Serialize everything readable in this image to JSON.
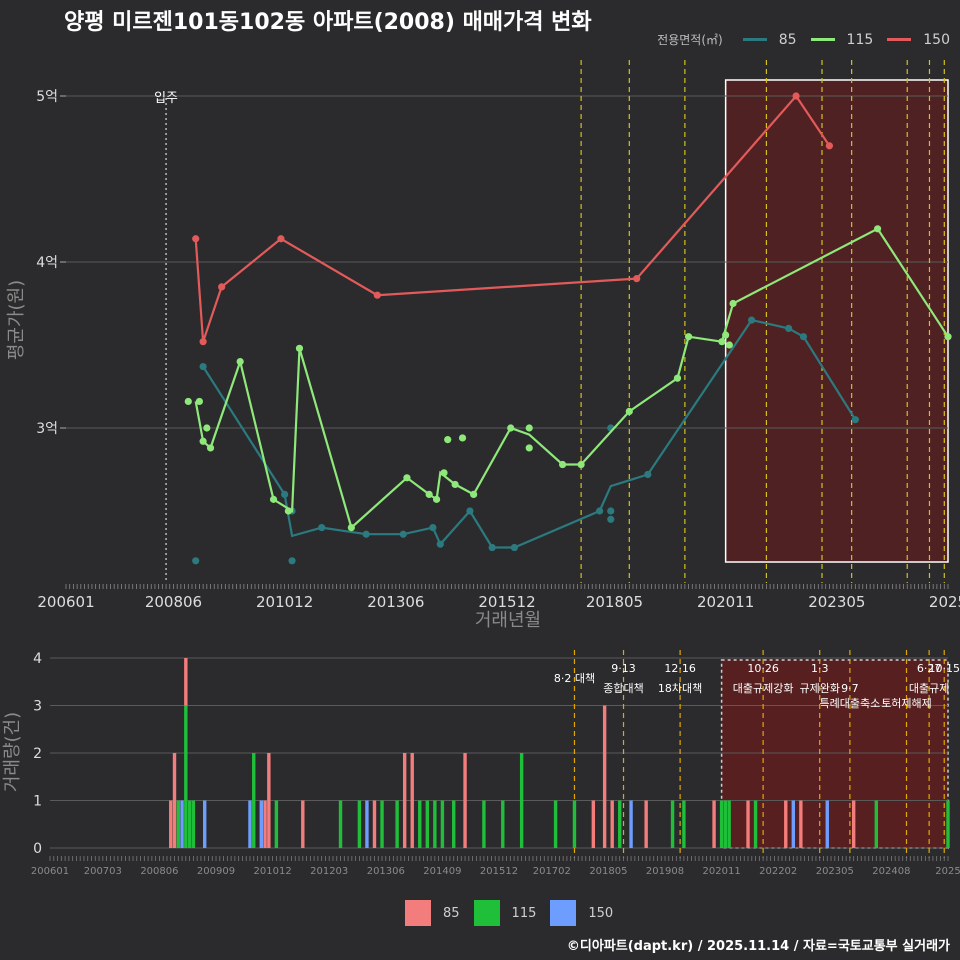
{
  "title": "양평 미르젠101동102동 아파트(2008) 매매가격 변화",
  "legend": {
    "title": "전용면적(㎡)",
    "items": [
      {
        "label": "85",
        "line_color": "#2b7a7f",
        "bar_color": "#f37c7c"
      },
      {
        "label": "115",
        "line_color": "#8ee87a",
        "bar_color": "#1fbf3a"
      },
      {
        "label": "150",
        "line_color": "#e35a5a",
        "bar_color": "#6d9eff"
      }
    ]
  },
  "credit": "©디아파트(dapt.kr) / 2025.11.14 / 자료=국토교통부 실거래가",
  "chart_data": [
    {
      "type": "line",
      "xlabel": "거래년월",
      "ylabel": "평균가(원)",
      "x_range": [
        "2006-01",
        "2025-11"
      ],
      "ylim": [
        2.05,
        5.2
      ],
      "y_ticks": [
        3,
        4,
        5
      ],
      "y_tick_labels": [
        "3억",
        "4억",
        "5억"
      ],
      "x_ticks": [
        "2006-01",
        "2008-06",
        "2010-12",
        "2013-06",
        "2015-12",
        "2018-05",
        "2020-11",
        "2023-05",
        "2025-11"
      ],
      "x_tick_labels": [
        "200601",
        "200806",
        "201012",
        "201306",
        "201512",
        "201805",
        "202011",
        "202305",
        "2025"
      ],
      "move_in": {
        "x": "2008-04",
        "label": "입주"
      },
      "highlight_range": [
        "2020-11",
        "2025-11"
      ],
      "policy_lines": [
        "2017-08",
        "2018-09",
        "2019-12",
        "2021-10",
        "2023-01",
        "2023-09",
        "2024-12",
        "2025-06",
        "2025-10"
      ],
      "series": [
        {
          "name": "85",
          "line": [
            [
              "2009-02",
              3.37
            ],
            [
              "2010-12",
              2.6
            ],
            [
              "2011-02",
              2.35
            ],
            [
              "2011-10",
              2.4
            ],
            [
              "2012-10",
              2.36
            ],
            [
              "2013-08",
              2.36
            ],
            [
              "2014-04",
              2.4
            ],
            [
              "2014-06",
              2.3
            ],
            [
              "2015-02",
              2.5
            ],
            [
              "2015-08",
              2.28
            ],
            [
              "2016-02",
              2.28
            ],
            [
              "2018-01",
              2.5
            ],
            [
              "2018-04",
              2.65
            ],
            [
              "2019-02",
              2.72
            ],
            [
              "2021-06",
              3.65
            ],
            [
              "2022-04",
              3.6
            ],
            [
              "2022-08",
              3.55
            ],
            [
              "2023-10",
              3.05
            ]
          ],
          "points": [
            [
              "2008-12",
              2.2
            ],
            [
              "2009-02",
              3.37
            ],
            [
              "2010-12",
              2.6
            ],
            [
              "2011-02",
              2.5
            ],
            [
              "2011-02",
              2.2
            ],
            [
              "2011-10",
              2.4
            ],
            [
              "2012-10",
              2.36
            ],
            [
              "2013-08",
              2.36
            ],
            [
              "2014-04",
              2.4
            ],
            [
              "2014-06",
              2.3
            ],
            [
              "2015-02",
              2.5
            ],
            [
              "2015-08",
              2.28
            ],
            [
              "2016-02",
              2.28
            ],
            [
              "2018-01",
              2.5
            ],
            [
              "2018-04",
              2.45
            ],
            [
              "2018-04",
              2.5
            ],
            [
              "2018-04",
              3.0
            ],
            [
              "2019-02",
              2.72
            ],
            [
              "2021-06",
              3.65
            ],
            [
              "2022-04",
              3.6
            ],
            [
              "2022-08",
              3.55
            ],
            [
              "2023-10",
              3.05
            ]
          ]
        },
        {
          "name": "115",
          "line": [
            [
              "2008-12",
              3.16
            ],
            [
              "2009-02",
              2.92
            ],
            [
              "2009-04",
              2.88
            ],
            [
              "2009-12",
              3.4
            ],
            [
              "2010-09",
              2.57
            ],
            [
              "2011-02",
              2.5
            ],
            [
              "2011-04",
              3.48
            ],
            [
              "2012-06",
              2.4
            ],
            [
              "2013-09",
              2.7
            ],
            [
              "2014-03",
              2.6
            ],
            [
              "2014-05",
              2.57
            ],
            [
              "2014-06",
              2.73
            ],
            [
              "2014-10",
              2.66
            ],
            [
              "2015-03",
              2.6
            ],
            [
              "2016-01",
              3.0
            ],
            [
              "2016-06",
              2.96
            ],
            [
              "2017-03",
              2.78
            ],
            [
              "2017-08",
              2.78
            ],
            [
              "2018-09",
              3.1
            ],
            [
              "2019-10",
              3.3
            ],
            [
              "2020-01",
              3.55
            ],
            [
              "2020-10",
              3.52
            ],
            [
              "2021-01",
              3.75
            ],
            [
              "2024-04",
              4.2
            ],
            [
              "2025-11",
              3.55
            ]
          ],
          "points": [
            [
              "2008-10",
              3.16
            ],
            [
              "2009-01",
              3.16
            ],
            [
              "2009-02",
              2.92
            ],
            [
              "2009-03",
              3.0
            ],
            [
              "2009-04",
              2.88
            ],
            [
              "2009-12",
              3.4
            ],
            [
              "2010-09",
              2.57
            ],
            [
              "2011-01",
              2.5
            ],
            [
              "2011-04",
              3.48
            ],
            [
              "2012-06",
              2.4
            ],
            [
              "2013-09",
              2.7
            ],
            [
              "2014-03",
              2.6
            ],
            [
              "2014-05",
              2.57
            ],
            [
              "2014-07",
              2.73
            ],
            [
              "2014-08",
              2.93
            ],
            [
              "2014-10",
              2.66
            ],
            [
              "2014-12",
              2.94
            ],
            [
              "2015-03",
              2.6
            ],
            [
              "2016-01",
              3.0
            ],
            [
              "2016-06",
              2.88
            ],
            [
              "2016-06",
              3.0
            ],
            [
              "2017-03",
              2.78
            ],
            [
              "2017-08",
              2.78
            ],
            [
              "2018-09",
              3.1
            ],
            [
              "2019-10",
              3.3
            ],
            [
              "2020-01",
              3.55
            ],
            [
              "2020-10",
              3.52
            ],
            [
              "2020-11",
              3.56
            ],
            [
              "2020-12",
              3.5
            ],
            [
              "2021-01",
              3.75
            ],
            [
              "2024-04",
              4.2
            ],
            [
              "2025-11",
              3.55
            ]
          ]
        },
        {
          "name": "150",
          "line": [
            [
              "2008-12",
              4.14
            ],
            [
              "2009-02",
              3.52
            ],
            [
              "2009-07",
              3.85
            ],
            [
              "2010-11",
              4.14
            ],
            [
              "2013-01",
              3.8
            ],
            [
              "2018-11",
              3.9
            ],
            [
              "2022-06",
              5.0
            ],
            [
              "2023-03",
              4.7
            ]
          ],
          "points": [
            [
              "2008-12",
              4.14
            ],
            [
              "2009-02",
              3.52
            ],
            [
              "2009-07",
              3.85
            ],
            [
              "2010-11",
              4.14
            ],
            [
              "2013-01",
              3.8
            ],
            [
              "2018-11",
              3.9
            ],
            [
              "2022-06",
              5.0
            ],
            [
              "2023-03",
              4.7
            ]
          ]
        }
      ]
    },
    {
      "type": "bar",
      "ylabel": "거래량(건)",
      "x_range": [
        "2006-01",
        "2025-11"
      ],
      "ylim": [
        0,
        4.2
      ],
      "y_ticks": [
        0,
        1,
        2,
        3,
        4
      ],
      "x_ticks": [
        "2006-01",
        "2007-03",
        "2008-06",
        "2009-09",
        "2010-12",
        "2012-03",
        "2013-06",
        "2014-09",
        "2015-12",
        "2017-02",
        "2018-05",
        "2019-08",
        "2020-11",
        "2022-02",
        "2023-05",
        "2024-08",
        "2025-11"
      ],
      "x_tick_labels": [
        "200601",
        "200703",
        "200806",
        "200909",
        "201012",
        "201203",
        "201306",
        "201409",
        "201512",
        "201702",
        "201805",
        "201908",
        "202011",
        "202202",
        "202305",
        "202408",
        "2025"
      ],
      "highlight_range": [
        "2020-11",
        "2025-11"
      ],
      "annotations": [
        {
          "x": "2017-08",
          "label": "8·2 대책",
          "row": 1
        },
        {
          "x": "2018-09",
          "label": "9·13",
          "row": 0
        },
        {
          "x": "2018-09",
          "label": "종합대책",
          "row": 2
        },
        {
          "x": "2019-12",
          "label": "12·16",
          "row": 0
        },
        {
          "x": "2019-12",
          "label": "18차대책",
          "row": 2
        },
        {
          "x": "2021-10",
          "label": "10·26",
          "row": 0
        },
        {
          "x": "2021-10",
          "label": "대출규제강화",
          "row": 2
        },
        {
          "x": "2023-01",
          "label": "1·3",
          "row": 0
        },
        {
          "x": "2023-01",
          "label": "규제완화",
          "row": 2
        },
        {
          "x": "2023-09",
          "label": "9·7",
          "row": 2
        },
        {
          "x": "2023-09",
          "label": "특례대출축소",
          "row": 3
        },
        {
          "x": "2024-12",
          "label": "토허제해제",
          "row": 3
        },
        {
          "x": "2025-06",
          "label": "6·27",
          "row": 0
        },
        {
          "x": "2025-06",
          "label": "대출규제",
          "row": 2
        },
        {
          "x": "2025-10",
          "label": "10·15",
          "row": 0
        }
      ],
      "bars": [
        {
          "x": "2008-09",
          "s85": 1,
          "s115": 0,
          "s150": 0
        },
        {
          "x": "2008-10",
          "s85": 2,
          "s115": 0,
          "s150": 0
        },
        {
          "x": "2008-11",
          "s85": 0,
          "s115": 1,
          "s150": 0
        },
        {
          "x": "2008-12",
          "s85": 0,
          "s115": 0,
          "s150": 1
        },
        {
          "x": "2009-01",
          "s85": 1,
          "s115": 3,
          "s150": 0
        },
        {
          "x": "2009-02",
          "s85": 0,
          "s115": 1,
          "s150": 0
        },
        {
          "x": "2009-03",
          "s85": 0,
          "s115": 1,
          "s150": 0
        },
        {
          "x": "2009-06",
          "s85": 0,
          "s115": 0,
          "s150": 1
        },
        {
          "x": "2010-06",
          "s85": 0,
          "s115": 0,
          "s150": 1
        },
        {
          "x": "2010-07",
          "s85": 0,
          "s115": 2,
          "s150": 0
        },
        {
          "x": "2010-09",
          "s85": 0,
          "s115": 0,
          "s150": 1
        },
        {
          "x": "2010-10",
          "s85": 1,
          "s115": 0,
          "s150": 0
        },
        {
          "x": "2010-11",
          "s85": 2,
          "s115": 0,
          "s150": 0
        },
        {
          "x": "2011-01",
          "s85": 0,
          "s115": 1,
          "s150": 0
        },
        {
          "x": "2011-08",
          "s85": 1,
          "s115": 0,
          "s150": 0
        },
        {
          "x": "2012-06",
          "s85": 0,
          "s115": 1,
          "s150": 0
        },
        {
          "x": "2012-11",
          "s85": 0,
          "s115": 1,
          "s150": 0
        },
        {
          "x": "2013-01",
          "s85": 0,
          "s115": 0,
          "s150": 1
        },
        {
          "x": "2013-03",
          "s85": 1,
          "s115": 0,
          "s150": 0
        },
        {
          "x": "2013-05",
          "s85": 0,
          "s115": 1,
          "s150": 0
        },
        {
          "x": "2013-09",
          "s85": 0,
          "s115": 1,
          "s150": 0
        },
        {
          "x": "2013-11",
          "s85": 2,
          "s115": 0,
          "s150": 0
        },
        {
          "x": "2014-01",
          "s85": 2,
          "s115": 0,
          "s150": 0
        },
        {
          "x": "2014-03",
          "s85": 0,
          "s115": 1,
          "s150": 0
        },
        {
          "x": "2014-05",
          "s85": 0,
          "s115": 1,
          "s150": 0
        },
        {
          "x": "2014-07",
          "s85": 0,
          "s115": 1,
          "s150": 0
        },
        {
          "x": "2014-09",
          "s85": 0,
          "s115": 1,
          "s150": 0
        },
        {
          "x": "2014-12",
          "s85": 0,
          "s115": 1,
          "s150": 0
        },
        {
          "x": "2015-03",
          "s85": 2,
          "s115": 0,
          "s150": 0
        },
        {
          "x": "2015-08",
          "s85": 0,
          "s115": 1,
          "s150": 0
        },
        {
          "x": "2016-01",
          "s85": 0,
          "s115": 1,
          "s150": 0
        },
        {
          "x": "2016-06",
          "s85": 0,
          "s115": 2,
          "s150": 0
        },
        {
          "x": "2017-03",
          "s85": 0,
          "s115": 1,
          "s150": 0
        },
        {
          "x": "2017-08",
          "s85": 0,
          "s115": 1,
          "s150": 0
        },
        {
          "x": "2018-01",
          "s85": 1,
          "s115": 0,
          "s150": 0
        },
        {
          "x": "2018-04",
          "s85": 3,
          "s115": 0,
          "s150": 0
        },
        {
          "x": "2018-06",
          "s85": 1,
          "s115": 0,
          "s150": 0
        },
        {
          "x": "2018-08",
          "s85": 0,
          "s115": 1,
          "s150": 0
        },
        {
          "x": "2018-11",
          "s85": 0,
          "s115": 0,
          "s150": 1
        },
        {
          "x": "2019-03",
          "s85": 1,
          "s115": 0,
          "s150": 0
        },
        {
          "x": "2019-10",
          "s85": 0,
          "s115": 1,
          "s150": 0
        },
        {
          "x": "2020-01",
          "s85": 0,
          "s115": 1,
          "s150": 0
        },
        {
          "x": "2020-09",
          "s85": 1,
          "s115": 0,
          "s150": 0
        },
        {
          "x": "2020-11",
          "s85": 0,
          "s115": 1,
          "s150": 0
        },
        {
          "x": "2020-12",
          "s85": 0,
          "s115": 1,
          "s150": 0
        },
        {
          "x": "2021-01",
          "s85": 0,
          "s115": 1,
          "s150": 0
        },
        {
          "x": "2021-06",
          "s85": 1,
          "s115": 0,
          "s150": 0
        },
        {
          "x": "2021-08",
          "s85": 0,
          "s115": 1,
          "s150": 0
        },
        {
          "x": "2022-04",
          "s85": 1,
          "s115": 0,
          "s150": 0
        },
        {
          "x": "2022-06",
          "s85": 0,
          "s115": 0,
          "s150": 1
        },
        {
          "x": "2022-08",
          "s85": 1,
          "s115": 0,
          "s150": 0
        },
        {
          "x": "2023-03",
          "s85": 0,
          "s115": 0,
          "s150": 1
        },
        {
          "x": "2023-10",
          "s85": 1,
          "s115": 0,
          "s150": 0
        },
        {
          "x": "2024-04",
          "s85": 0,
          "s115": 1,
          "s150": 0
        },
        {
          "x": "2025-11",
          "s85": 0,
          "s115": 1,
          "s150": 0
        }
      ]
    }
  ]
}
